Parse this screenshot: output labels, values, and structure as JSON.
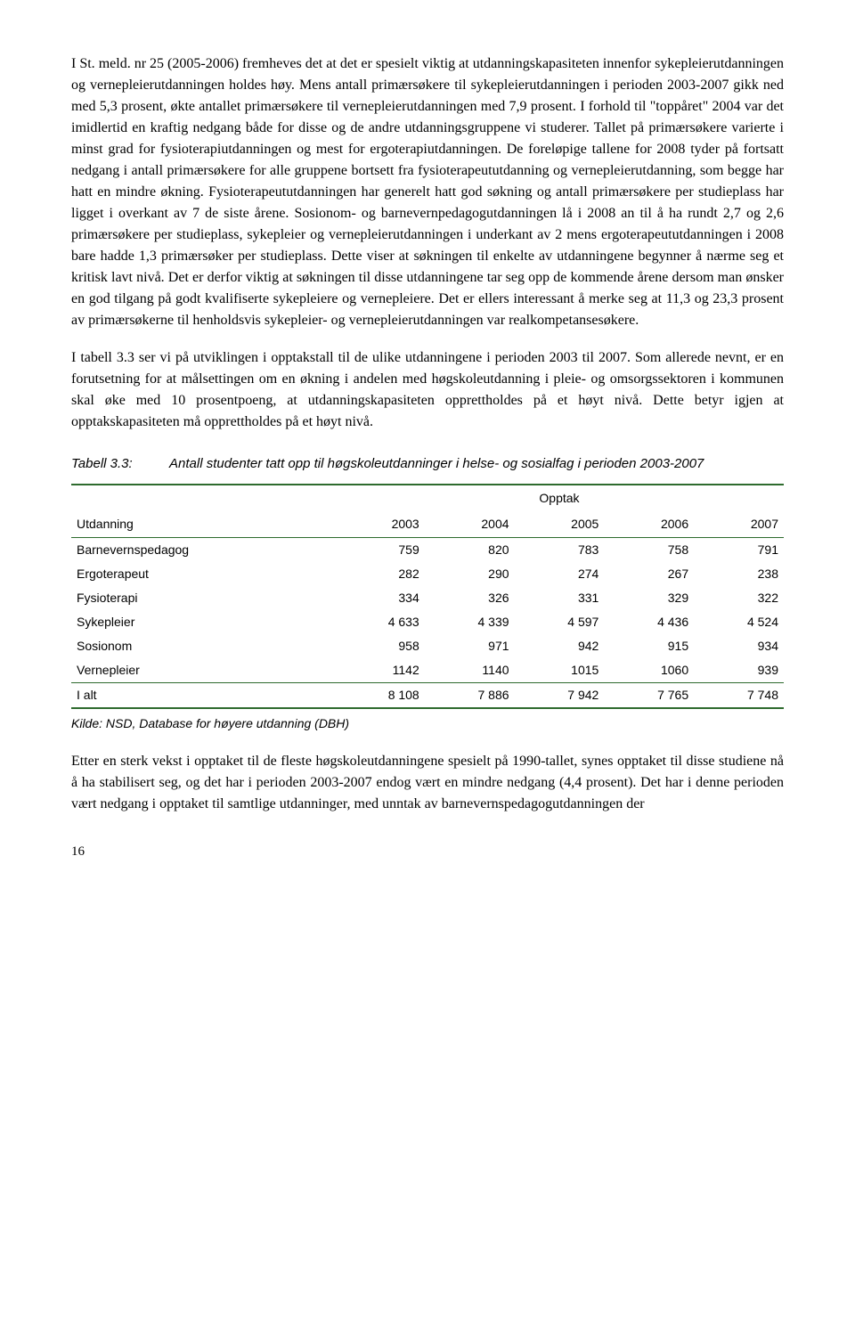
{
  "para1": "I St. meld. nr 25 (2005-2006) fremheves det at det er spesielt viktig at utdanningskapasiteten innenfor sykepleierutdanningen og vernepleierutdanningen holdes høy. Mens antall primærsøkere til sykepleierutdanningen i perioden 2003-2007 gikk ned med 5,3 prosent, økte antallet primærsøkere til vernepleierutdanningen med 7,9 prosent. I forhold til \"toppåret\" 2004 var det imidlertid en kraftig nedgang både for disse og de andre utdanningsgruppene vi studerer. Tallet på primærsøkere varierte i minst grad for fysioterapiutdanningen og mest for ergoterapiutdanningen. De foreløpige tallene for 2008 tyder på fortsatt nedgang i antall primærsøkere for alle gruppene bortsett fra fysioterapeututdanning og vernepleierutdanning, som begge har hatt en mindre økning. Fysioterapeututdanningen har generelt hatt god søkning og antall primærsøkere per studieplass har ligget i overkant av 7 de siste årene. Sosionom- og barnevernpedagogutdanningen lå i 2008 an til å ha rundt 2,7 og 2,6 primærsøkere per studieplass, sykepleier og vernepleierutdanningen i underkant av 2 mens ergoterapeututdanningen i 2008 bare hadde 1,3 primærsøker per studieplass. Dette viser at søkningen til enkelte av utdanningene begynner å nærme seg et kritisk lavt nivå. Det er derfor viktig at søkningen til disse utdanningene tar seg opp de kommende årene dersom man ønsker en god tilgang på godt kvalifiserte sykepleiere og vernepleiere. Det er ellers interessant å merke seg at 11,3 og 23,3 prosent av primærsøkerne til henholdsvis sykepleier- og vernepleierutdanningen var realkompetansesøkere.",
  "para2": "I tabell 3.3 ser vi på utviklingen i opptakstall til de ulike utdanningene i perioden 2003 til 2007. Som allerede nevnt, er en forutsetning for at målsettingen om en økning i andelen med høgskoleutdanning i pleie- og omsorgssektoren i kommunen skal øke med 10 prosentpoeng, at utdanningskapasiteten opprettholdes på et høyt nivå. Dette betyr igjen at opptakskapasiteten må opprettholdes på et høyt nivå.",
  "tableCaption": {
    "label": "Tabell 3.3:",
    "text": "Antall studenter tatt opp til høgskoleutdanninger i helse- og sosialfag i perioden 2003-2007"
  },
  "table": {
    "spanHeader": "Opptak",
    "columns": [
      "Utdanning",
      "2003",
      "2004",
      "2005",
      "2006",
      "2007"
    ],
    "rows": [
      [
        "Barnevernspedagog",
        "759",
        "820",
        "783",
        "758",
        "791"
      ],
      [
        "Ergoterapeut",
        "282",
        "290",
        "274",
        "267",
        "238"
      ],
      [
        "Fysioterapi",
        "334",
        "326",
        "331",
        "329",
        "322"
      ],
      [
        "Sykepleier",
        "4 633",
        "4 339",
        "4 597",
        "4 436",
        "4 524"
      ],
      [
        "Sosionom",
        "958",
        "971",
        "942",
        "915",
        "934"
      ],
      [
        "Vernepleier",
        "1142",
        "1140",
        "1015",
        "1060",
        "939"
      ]
    ],
    "totalRow": [
      "I alt",
      "8 108",
      "7 886",
      "7 942",
      "7 765",
      "7 748"
    ]
  },
  "source": "Kilde: NSD, Database for høyere utdanning (DBH)",
  "para3": "Etter en sterk vekst i opptaket til de fleste høgskoleutdanningene spesielt på 1990-tallet, synes opptaket til disse studiene nå å ha stabilisert seg, og det har i perioden 2003-2007 endog vært en mindre nedgang (4,4 prosent). Det har i denne perioden vært nedgang i opptaket til samtlige utdanninger, med unntak av barnevernspedagogutdanningen der",
  "pageNum": "16"
}
